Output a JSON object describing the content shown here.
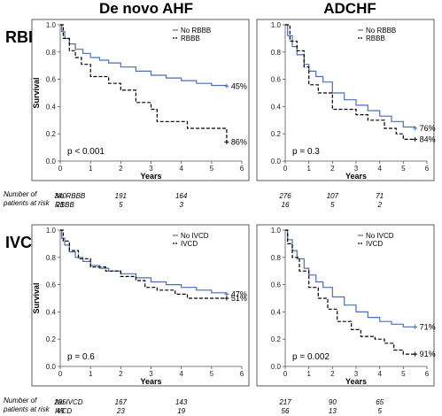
{
  "column_titles": [
    "De novo AHF",
    "ADCHF"
  ],
  "row_titles": [
    "RBBB",
    "IVCD"
  ],
  "risk_table_label": [
    "Number of",
    "patients at risk"
  ],
  "colors": {
    "group_no": "#4a6fb5",
    "group_yes": "#000000"
  },
  "chart_data": [
    {
      "type": "line",
      "panel": "RBBB / De novo AHF",
      "xlabel": "Years",
      "ylabel": "Survival",
      "xlim": [
        0,
        6
      ],
      "ylim": [
        0,
        1.0
      ],
      "x_ticks": [
        "0",
        "1",
        "2",
        "3",
        "4",
        "5",
        "6"
      ],
      "y_ticks": [
        "0.0",
        "0.2",
        "0.4",
        "0.6",
        "0.8",
        "1.0"
      ],
      "legend": [
        "No RBBB",
        "RBBB"
      ],
      "p_value": "p < 0.001",
      "end_labels": [
        "45%",
        "86%"
      ],
      "series": [
        {
          "name": "No RBBB",
          "style": "solid",
          "points": [
            [
              0,
              1.0
            ],
            [
              0.05,
              0.95
            ],
            [
              0.15,
              0.9
            ],
            [
              0.3,
              0.86
            ],
            [
              0.5,
              0.82
            ],
            [
              0.75,
              0.79
            ],
            [
              1.0,
              0.76
            ],
            [
              1.3,
              0.74
            ],
            [
              1.6,
              0.72
            ],
            [
              2.0,
              0.69
            ],
            [
              2.5,
              0.66
            ],
            [
              3.0,
              0.63
            ],
            [
              3.5,
              0.61
            ],
            [
              4.0,
              0.59
            ],
            [
              4.5,
              0.57
            ],
            [
              5.0,
              0.555
            ],
            [
              5.5,
              0.55
            ]
          ]
        },
        {
          "name": "RBBB",
          "style": "dashed",
          "points": [
            [
              0,
              1.0
            ],
            [
              0.1,
              0.9
            ],
            [
              0.3,
              0.81
            ],
            [
              0.5,
              0.76
            ],
            [
              0.7,
              0.71
            ],
            [
              1.0,
              0.62
            ],
            [
              1.5,
              0.62
            ],
            [
              1.6,
              0.57
            ],
            [
              2.0,
              0.52
            ],
            [
              2.5,
              0.43
            ],
            [
              3.0,
              0.38
            ],
            [
              3.2,
              0.29
            ],
            [
              4.0,
              0.29
            ],
            [
              4.2,
              0.24
            ],
            [
              5.3,
              0.24
            ],
            [
              5.5,
              0.14
            ]
          ]
        }
      ],
      "at_risk": {
        "x": [
          0,
          2,
          4
        ],
        "rows": [
          {
            "label": "No RBBB",
            "values": [
              "340",
              "191",
              "164"
            ]
          },
          {
            "label": "RBBB",
            "values": [
              "21",
              "5",
              "3"
            ]
          }
        ]
      }
    },
    {
      "type": "line",
      "panel": "RBBB / ADCHF",
      "xlabel": "Years",
      "ylabel": "",
      "xlim": [
        0,
        6
      ],
      "ylim": [
        0,
        1.0
      ],
      "x_ticks": [
        "0",
        "1",
        "2",
        "3",
        "4",
        "5",
        "6"
      ],
      "y_ticks": [
        "0.0",
        "0.2",
        "0.4",
        "0.6",
        "0.8",
        "1.0"
      ],
      "legend": [
        "No RBBB",
        "RBBB"
      ],
      "p_value": "p = 0.3",
      "end_labels": [
        "76%",
        "84%"
      ],
      "series": [
        {
          "name": "No RBBB",
          "style": "solid",
          "points": [
            [
              0,
              1.0
            ],
            [
              0.1,
              0.92
            ],
            [
              0.3,
              0.84
            ],
            [
              0.5,
              0.78
            ],
            [
              0.8,
              0.71
            ],
            [
              1.0,
              0.66
            ],
            [
              1.3,
              0.62
            ],
            [
              1.6,
              0.58
            ],
            [
              2.0,
              0.5
            ],
            [
              2.5,
              0.45
            ],
            [
              3.0,
              0.41
            ],
            [
              3.5,
              0.37
            ],
            [
              4.0,
              0.33
            ],
            [
              4.5,
              0.29
            ],
            [
              5.0,
              0.25
            ],
            [
              5.5,
              0.24
            ]
          ]
        },
        {
          "name": "RBBB",
          "style": "dashed",
          "points": [
            [
              0,
              1.0
            ],
            [
              0.2,
              0.88
            ],
            [
              0.5,
              0.81
            ],
            [
              0.8,
              0.69
            ],
            [
              1.0,
              0.56
            ],
            [
              1.4,
              0.5
            ],
            [
              2.0,
              0.38
            ],
            [
              2.5,
              0.38
            ],
            [
              3.0,
              0.34
            ],
            [
              3.5,
              0.3
            ],
            [
              4.2,
              0.24
            ],
            [
              4.7,
              0.2
            ],
            [
              5.0,
              0.16
            ],
            [
              5.5,
              0.16
            ]
          ]
        }
      ],
      "at_risk": {
        "x": [
          0,
          2,
          4
        ],
        "rows": [
          {
            "label": "No RBBB",
            "values": [
              "276",
              "107",
              "71"
            ]
          },
          {
            "label": "RBBB",
            "values": [
              "16",
              "5",
              "2"
            ]
          }
        ]
      }
    },
    {
      "type": "line",
      "panel": "IVCD / De novo AHF",
      "xlabel": "Years",
      "ylabel": "Survival",
      "xlim": [
        0,
        6
      ],
      "ylim": [
        0,
        1.0
      ],
      "x_ticks": [
        "0",
        "1",
        "2",
        "3",
        "4",
        "5",
        "6"
      ],
      "y_ticks": [
        "0.0",
        "0.2",
        "0.4",
        "0.6",
        "0.8",
        "1.0"
      ],
      "legend": [
        "No IVCD",
        "IVCD"
      ],
      "p_value": "p = 0.6",
      "end_labels": [
        "47%",
        "51%"
      ],
      "series": [
        {
          "name": "No IVCD",
          "style": "solid",
          "points": [
            [
              0,
              1.0
            ],
            [
              0.05,
              0.94
            ],
            [
              0.15,
              0.89
            ],
            [
              0.3,
              0.84
            ],
            [
              0.5,
              0.8
            ],
            [
              0.75,
              0.77
            ],
            [
              1.0,
              0.74
            ],
            [
              1.3,
              0.72
            ],
            [
              1.6,
              0.7
            ],
            [
              2.0,
              0.68
            ],
            [
              2.5,
              0.65
            ],
            [
              3.0,
              0.62
            ],
            [
              3.5,
              0.6
            ],
            [
              4.0,
              0.58
            ],
            [
              4.5,
              0.56
            ],
            [
              5.0,
              0.54
            ],
            [
              5.5,
              0.53
            ]
          ]
        },
        {
          "name": "IVCD",
          "style": "dashed",
          "points": [
            [
              0,
              1.0
            ],
            [
              0.1,
              0.92
            ],
            [
              0.3,
              0.85
            ],
            [
              0.6,
              0.79
            ],
            [
              1.0,
              0.73
            ],
            [
              1.5,
              0.7
            ],
            [
              2.0,
              0.66
            ],
            [
              2.5,
              0.63
            ],
            [
              2.8,
              0.58
            ],
            [
              3.2,
              0.56
            ],
            [
              3.8,
              0.53
            ],
            [
              4.2,
              0.5
            ],
            [
              5.5,
              0.5
            ]
          ]
        }
      ],
      "at_risk": {
        "x": [
          0,
          2,
          4
        ],
        "rows": [
          {
            "label": "No IVCD",
            "values": [
              "295",
              "167",
              "143"
            ]
          },
          {
            "label": "IVCD",
            "values": [
              "49",
              "23",
              "19"
            ]
          }
        ]
      }
    },
    {
      "type": "line",
      "panel": "IVCD / ADCHF",
      "xlabel": "Years",
      "ylabel": "",
      "xlim": [
        0,
        6
      ],
      "ylim": [
        0,
        1.0
      ],
      "x_ticks": [
        "0",
        "1",
        "2",
        "3",
        "4",
        "5",
        "6"
      ],
      "y_ticks": [
        "0.0",
        "0.2",
        "0.4",
        "0.6",
        "0.8",
        "1.0"
      ],
      "legend": [
        "No IVCD",
        "IVCD"
      ],
      "p_value": "p = 0.002",
      "end_labels": [
        "71%",
        "91%"
      ],
      "series": [
        {
          "name": "No IVCD",
          "style": "solid",
          "points": [
            [
              0,
              1.0
            ],
            [
              0.1,
              0.93
            ],
            [
              0.3,
              0.85
            ],
            [
              0.5,
              0.79
            ],
            [
              0.8,
              0.72
            ],
            [
              1.0,
              0.67
            ],
            [
              1.3,
              0.62
            ],
            [
              1.6,
              0.58
            ],
            [
              2.0,
              0.51
            ],
            [
              2.5,
              0.45
            ],
            [
              3.0,
              0.4
            ],
            [
              3.5,
              0.36
            ],
            [
              4.0,
              0.33
            ],
            [
              4.5,
              0.31
            ],
            [
              5.0,
              0.29
            ],
            [
              5.5,
              0.29
            ]
          ]
        },
        {
          "name": "IVCD",
          "style": "dashed",
          "points": [
            [
              0,
              1.0
            ],
            [
              0.1,
              0.9
            ],
            [
              0.3,
              0.8
            ],
            [
              0.6,
              0.7
            ],
            [
              1.0,
              0.58
            ],
            [
              1.4,
              0.5
            ],
            [
              1.8,
              0.42
            ],
            [
              2.2,
              0.33
            ],
            [
              2.8,
              0.27
            ],
            [
              3.2,
              0.22
            ],
            [
              3.8,
              0.2
            ],
            [
              4.2,
              0.17
            ],
            [
              4.6,
              0.12
            ],
            [
              5.0,
              0.09
            ],
            [
              5.5,
              0.09
            ]
          ]
        }
      ],
      "at_risk": {
        "x": [
          0,
          2,
          4
        ],
        "rows": [
          {
            "label": "No IVCD",
            "values": [
              "217",
              "90",
              "65"
            ]
          },
          {
            "label": "IVCD",
            "values": [
              "56",
              "13",
              "5"
            ]
          }
        ]
      }
    }
  ]
}
